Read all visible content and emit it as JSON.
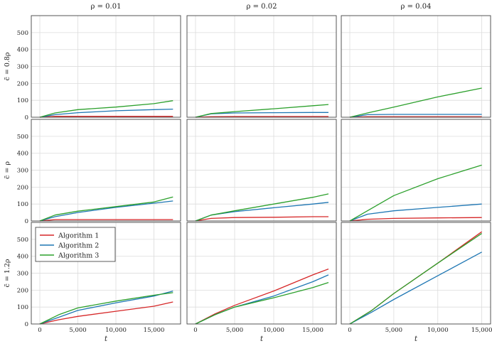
{
  "chart_data": {
    "type": "line",
    "columns": [
      "ρ = 0.01",
      "ρ = 0.02",
      "ρ = 0.04"
    ],
    "rows": [
      "c̃ = 0.8ρ",
      "c̃ = ρ",
      "c̃ = 1.2ρ"
    ],
    "xlabel": "t",
    "ylim": [
      0,
      550
    ],
    "yticks": [
      "0",
      "100",
      "200",
      "300",
      "400",
      "500"
    ],
    "xticks": [
      "0",
      "5,000",
      "10,000",
      "15,000"
    ],
    "grid": true,
    "legend": {
      "location": "top-left",
      "panel": 6,
      "entries": [
        "Algorithm 1",
        "Algorithm 2",
        "Algorithm 3"
      ]
    },
    "colors": {
      "Algorithm 1": "#d62728",
      "Algorithm 2": "#1f77b4",
      "Algorithm 3": "#2ca02c"
    },
    "panels": [
      {
        "row": 0,
        "col": 0,
        "x": [
          0,
          2000,
          5000,
          10000,
          15000,
          17500
        ],
        "series": [
          {
            "name": "Algorithm 1",
            "values": [
              0,
              5,
              5,
              5,
              5,
              5
            ]
          },
          {
            "name": "Algorithm 2",
            "values": [
              0,
              15,
              27,
              38,
              45,
              48
            ]
          },
          {
            "name": "Algorithm 3",
            "values": [
              0,
              25,
              45,
              60,
              80,
              98
            ]
          }
        ]
      },
      {
        "row": 0,
        "col": 1,
        "x": [
          0,
          2000,
          5000,
          10000,
          15000,
          17000
        ],
        "series": [
          {
            "name": "Algorithm 1",
            "values": [
              0,
              3,
              4,
              4,
              4,
              4
            ]
          },
          {
            "name": "Algorithm 2",
            "values": [
              0,
              20,
              25,
              27,
              28,
              28
            ]
          },
          {
            "name": "Algorithm 3",
            "values": [
              0,
              22,
              33,
              50,
              68,
              75
            ]
          }
        ]
      },
      {
        "row": 0,
        "col": 2,
        "x": [
          0,
          2000,
          5000,
          10000,
          15000
        ],
        "series": [
          {
            "name": "Algorithm 1",
            "values": [
              0,
              3,
              3,
              3,
              3
            ]
          },
          {
            "name": "Algorithm 2",
            "values": [
              0,
              15,
              17,
              17,
              17
            ]
          },
          {
            "name": "Algorithm 3",
            "values": [
              0,
              25,
              60,
              120,
              172
            ]
          }
        ]
      },
      {
        "row": 1,
        "col": 0,
        "x": [
          0,
          2000,
          5000,
          10000,
          15000,
          17500
        ],
        "series": [
          {
            "name": "Algorithm 1",
            "values": [
              0,
              8,
              8,
              8,
              8,
              8
            ]
          },
          {
            "name": "Algorithm 2",
            "values": [
              0,
              25,
              50,
              80,
              105,
              118
            ]
          },
          {
            "name": "Algorithm 3",
            "values": [
              0,
              35,
              58,
              85,
              112,
              142
            ]
          }
        ]
      },
      {
        "row": 1,
        "col": 1,
        "x": [
          0,
          2000,
          5000,
          10000,
          15000,
          17000
        ],
        "series": [
          {
            "name": "Algorithm 1",
            "values": [
              0,
              15,
              20,
              22,
              25,
              25
            ]
          },
          {
            "name": "Algorithm 2",
            "values": [
              0,
              35,
              55,
              78,
              100,
              110
            ]
          },
          {
            "name": "Algorithm 3",
            "values": [
              0,
              35,
              60,
              100,
              140,
              160
            ]
          }
        ]
      },
      {
        "row": 1,
        "col": 2,
        "x": [
          0,
          2000,
          5000,
          10000,
          15000
        ],
        "series": [
          {
            "name": "Algorithm 1",
            "values": [
              0,
              10,
              15,
              18,
              20
            ]
          },
          {
            "name": "Algorithm 2",
            "values": [
              0,
              40,
              60,
              80,
              100
            ]
          },
          {
            "name": "Algorithm 3",
            "values": [
              0,
              60,
              150,
              250,
              330
            ]
          }
        ]
      },
      {
        "row": 2,
        "col": 0,
        "x": [
          0,
          2500,
          5000,
          10000,
          15000,
          17500
        ],
        "series": [
          {
            "name": "Algorithm 1",
            "values": [
              0,
              25,
              45,
              75,
              105,
              130
            ]
          },
          {
            "name": "Algorithm 2",
            "values": [
              0,
              40,
              80,
              125,
              165,
              195
            ]
          },
          {
            "name": "Algorithm 3",
            "values": [
              0,
              55,
              95,
              135,
              170,
              185
            ]
          }
        ]
      },
      {
        "row": 2,
        "col": 1,
        "x": [
          0,
          2500,
          5000,
          10000,
          15000,
          17000
        ],
        "series": [
          {
            "name": "Algorithm 1",
            "values": [
              0,
              60,
              110,
              195,
              290,
              325
            ]
          },
          {
            "name": "Algorithm 2",
            "values": [
              0,
              55,
              100,
              165,
              250,
              290
            ]
          },
          {
            "name": "Algorithm 3",
            "values": [
              0,
              55,
              100,
              155,
              215,
              245
            ]
          }
        ]
      },
      {
        "row": 2,
        "col": 2,
        "x": [
          0,
          2500,
          5000,
          10000,
          15000
        ],
        "series": [
          {
            "name": "Algorithm 1",
            "values": [
              0,
              80,
              180,
              360,
              545
            ]
          },
          {
            "name": "Algorithm 2",
            "values": [
              0,
              70,
              145,
              285,
              425
            ]
          },
          {
            "name": "Algorithm 3",
            "values": [
              0,
              80,
              180,
              360,
              535
            ]
          }
        ]
      }
    ]
  }
}
